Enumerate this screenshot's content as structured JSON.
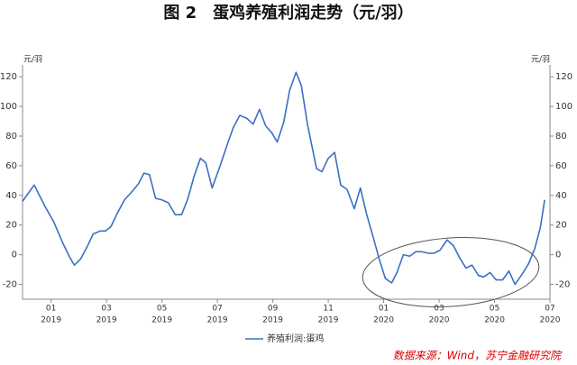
{
  "chart_data": {
    "type": "line",
    "title": "图 2　蛋鸡养殖利润走势（元/羽）",
    "y_unit": "元/羽",
    "source": "数据来源：Wind，苏宁金融研究院",
    "x": [
      -1.03,
      -0.61,
      -0.23,
      0.1,
      0.42,
      0.68,
      0.84,
      1.06,
      1.29,
      1.52,
      1.77,
      1.97,
      2.16,
      2.39,
      2.65,
      2.94,
      3.16,
      3.35,
      3.55,
      3.77,
      4.0,
      4.23,
      4.48,
      4.71,
      4.94,
      5.16,
      5.39,
      5.58,
      5.81,
      6.1,
      6.35,
      6.58,
      6.81,
      7.06,
      7.29,
      7.52,
      7.74,
      7.97,
      8.16,
      8.39,
      8.61,
      8.84,
      9.03,
      9.26,
      9.58,
      9.77,
      10.0,
      10.23,
      10.45,
      10.68,
      10.94,
      11.16,
      11.39,
      11.65,
      11.84,
      12.06,
      12.29,
      12.48,
      12.71,
      12.94,
      13.16,
      13.39,
      13.61,
      13.81,
      14.03,
      14.29,
      14.52,
      14.74,
      14.97,
      15.19,
      15.42,
      15.61,
      15.84,
      16.06,
      16.29,
      16.52,
      16.74,
      17.0,
      17.23,
      17.45,
      17.65,
      17.81
    ],
    "series": [
      {
        "name": "养殖利润:蛋鸡",
        "color": "#3b6fc4",
        "values": [
          36,
          47,
          33,
          22,
          8,
          -2,
          -7,
          -3,
          5,
          14,
          16,
          16,
          19,
          28,
          37,
          43,
          48,
          55,
          54,
          38,
          37,
          35,
          27,
          27,
          38,
          53,
          65,
          62,
          45,
          60,
          74,
          86,
          94,
          92,
          88,
          98,
          87,
          82,
          76,
          89,
          111,
          123,
          114,
          87,
          58,
          56,
          65,
          69,
          47,
          44,
          31,
          45,
          27,
          10,
          -3,
          -16,
          -19,
          -12,
          0,
          -1,
          2,
          2,
          1,
          1,
          3,
          10,
          6,
          -2,
          -9,
          -7,
          -14,
          -15,
          -12,
          -17,
          -17,
          -11,
          -20,
          -13,
          -6,
          4,
          18,
          37
        ]
      }
    ],
    "xlim": [
      -1.03,
      18
    ],
    "xticks": [
      {
        "value": 0,
        "label": "01",
        "year": "2019"
      },
      {
        "value": 2,
        "label": "03",
        "year": "2019"
      },
      {
        "value": 4,
        "label": "05",
        "year": "2019"
      },
      {
        "value": 6,
        "label": "07",
        "year": "2019"
      },
      {
        "value": 8,
        "label": "09",
        "year": "2019"
      },
      {
        "value": 10,
        "label": "11",
        "year": "2019"
      },
      {
        "value": 12,
        "label": "01",
        "year": "2020"
      },
      {
        "value": 14,
        "label": "03",
        "year": "2020"
      },
      {
        "value": 16,
        "label": "05",
        "year": "2020"
      },
      {
        "value": 18,
        "label": "07",
        "year": "2020"
      }
    ],
    "ylim": [
      -30,
      128
    ],
    "yticks": [
      -20,
      0,
      20,
      40,
      60,
      80,
      100,
      120
    ],
    "grid": false
  }
}
